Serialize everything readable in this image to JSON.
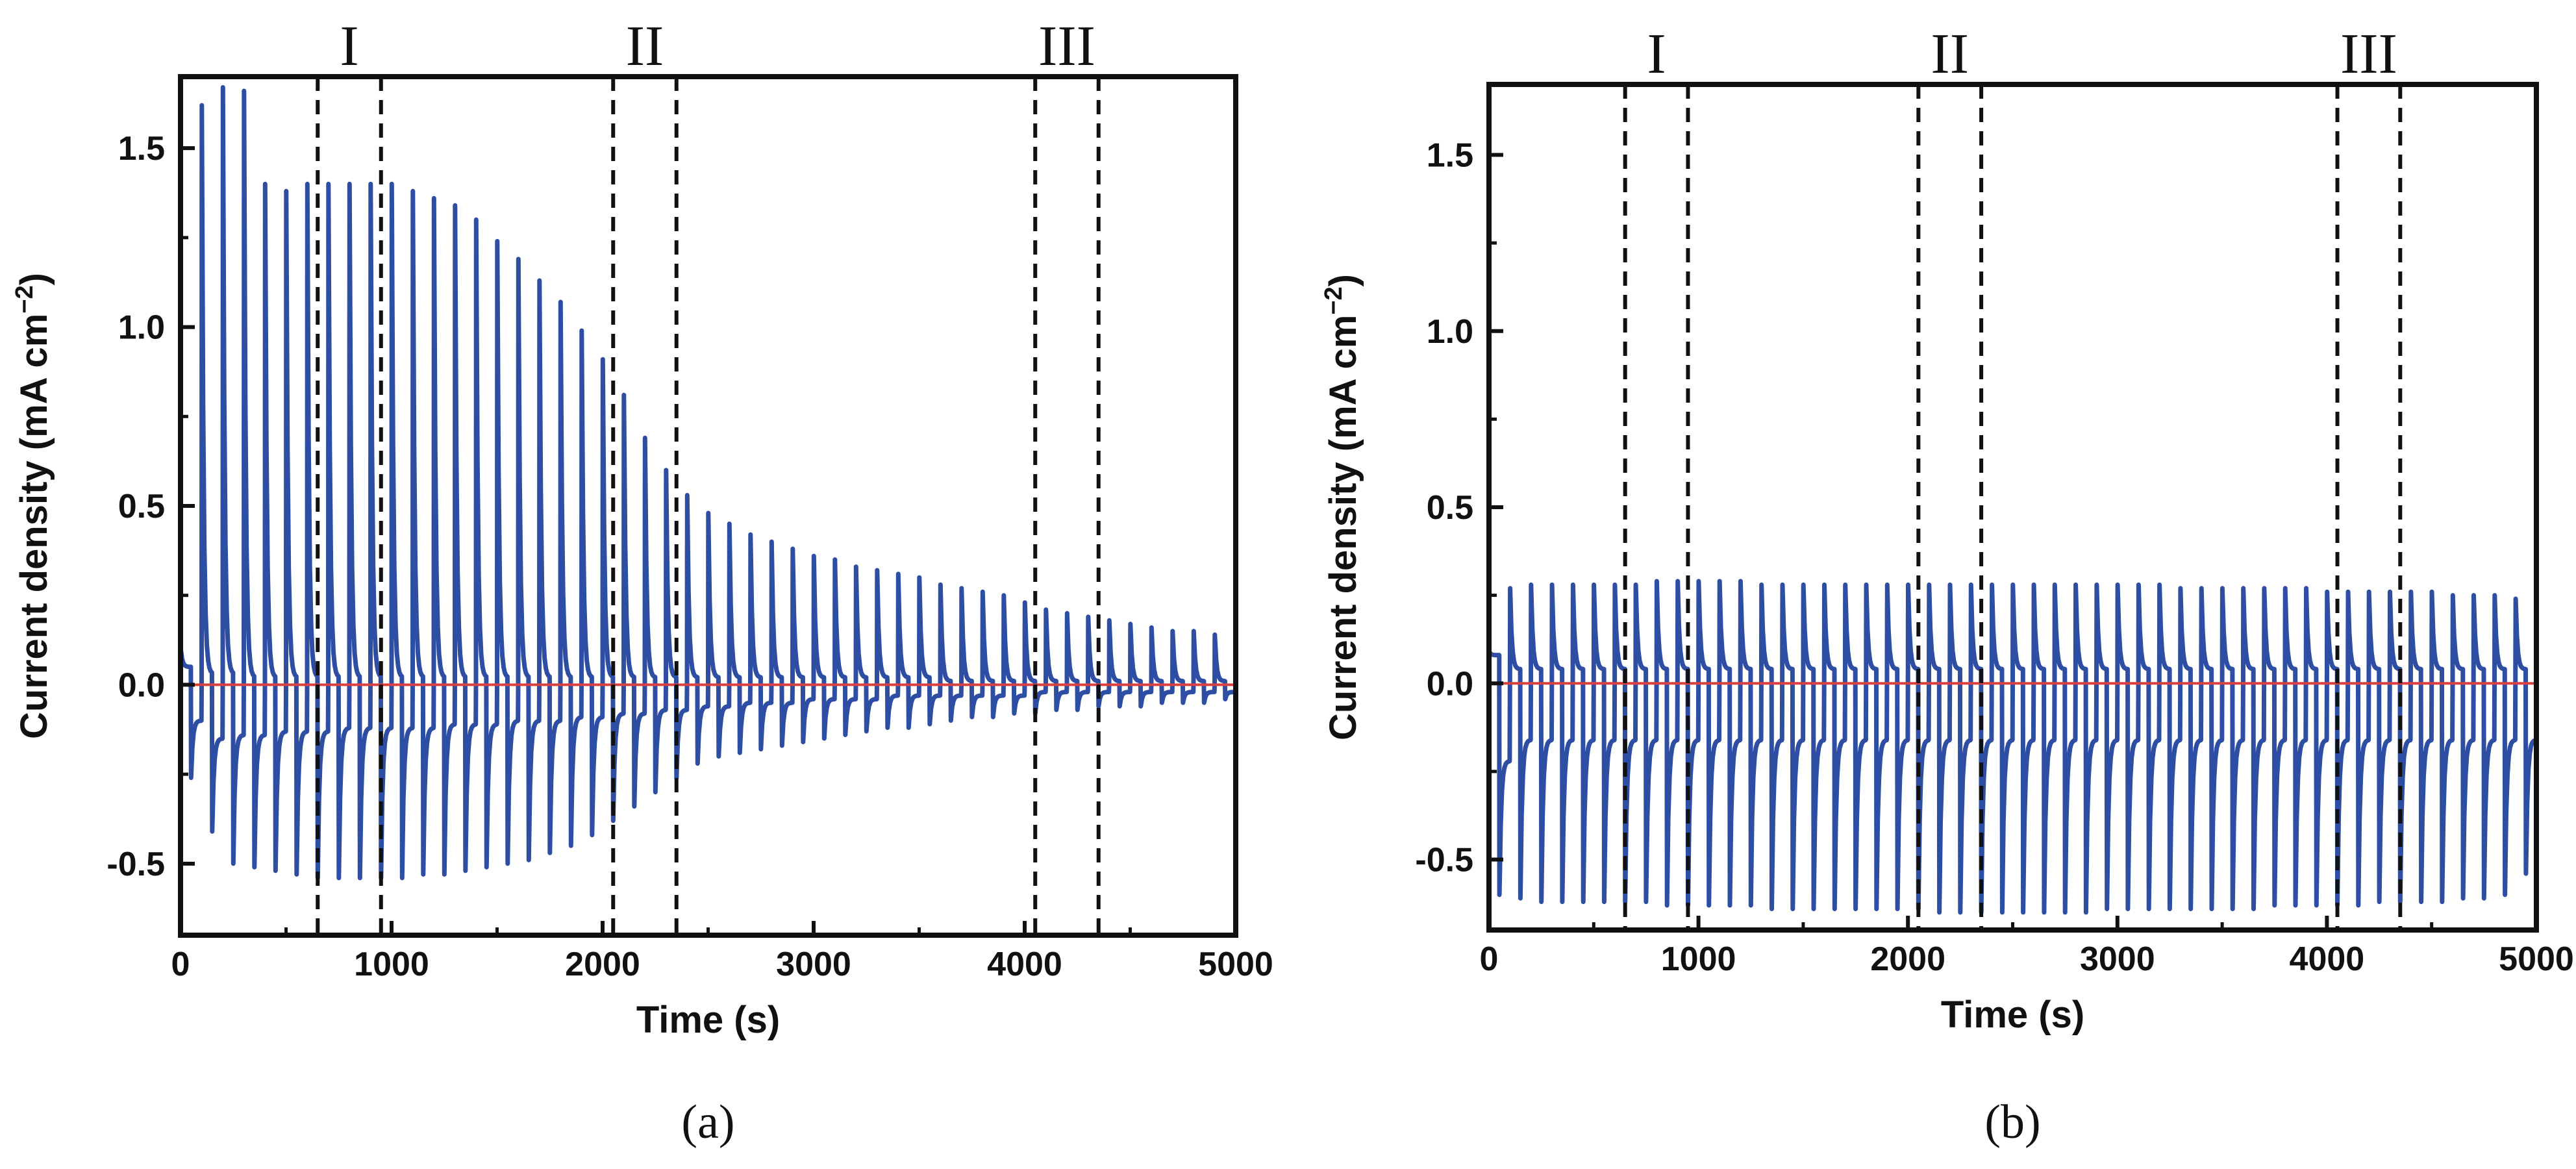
{
  "chart_data": [
    {
      "type": "line",
      "panel_label": "(a)",
      "xlabel": "Time (s)",
      "ylabel_main": "Current density (mA cm",
      "ylabel_sup": "−2",
      "ylabel_close": ")",
      "xlim": [
        0,
        5000
      ],
      "ylim": [
        -0.7,
        1.7
      ],
      "xticks": [
        0,
        1000,
        2000,
        3000,
        4000,
        5000
      ],
      "xtick_labels": [
        "0",
        "1000",
        "2000",
        "3000",
        "4000",
        "5000"
      ],
      "yticks": [
        -0.5,
        0.0,
        0.5,
        1.0,
        1.5
      ],
      "ytick_labels": [
        "-0.5",
        "0.0",
        "0.5",
        "1.0",
        "1.5"
      ],
      "series": [
        {
          "name": "current transient",
          "color": "#2e4ea3",
          "pulse_period_s": 100,
          "pulse_start_s": 0,
          "anodic_peaks": [
            0.1,
            1.62,
            1.67,
            1.66,
            1.4,
            1.38,
            1.4,
            1.4,
            1.4,
            1.4,
            1.4,
            1.38,
            1.36,
            1.34,
            1.3,
            1.24,
            1.19,
            1.13,
            1.07,
            0.99,
            0.91,
            0.81,
            0.69,
            0.6,
            0.53,
            0.48,
            0.45,
            0.42,
            0.4,
            0.38,
            0.36,
            0.35,
            0.33,
            0.32,
            0.31,
            0.3,
            0.28,
            0.27,
            0.26,
            0.25,
            0.23,
            0.21,
            0.2,
            0.19,
            0.18,
            0.17,
            0.16,
            0.15,
            0.15,
            0.14
          ],
          "cathodic_peaks": [
            -0.26,
            -0.41,
            -0.5,
            -0.51,
            -0.52,
            -0.53,
            -0.54,
            -0.54,
            -0.54,
            -0.54,
            -0.54,
            -0.53,
            -0.53,
            -0.52,
            -0.51,
            -0.5,
            -0.49,
            -0.47,
            -0.45,
            -0.42,
            -0.38,
            -0.34,
            -0.3,
            -0.26,
            -0.22,
            -0.2,
            -0.19,
            -0.18,
            -0.17,
            -0.16,
            -0.15,
            -0.14,
            -0.13,
            -0.12,
            -0.12,
            -0.11,
            -0.1,
            -0.09,
            -0.09,
            -0.08,
            -0.08,
            -0.07,
            -0.07,
            -0.06,
            -0.06,
            -0.06,
            -0.05,
            -0.05,
            -0.05,
            -0.04
          ],
          "anodic_plateaus": [
            0.05,
            0.03,
            0.03,
            0.02,
            0.02,
            0.02,
            0.02,
            0.02,
            0.02,
            0.02,
            0.02,
            0.02,
            0.02,
            0.02,
            0.02,
            0.02,
            0.02,
            0.02,
            0.02,
            0.02,
            0.02,
            0.02,
            0.02,
            0.02,
            0.02,
            0.02,
            0.02,
            0.02,
            0.02,
            0.02,
            0.02,
            0.02,
            0.02,
            0.02,
            0.02,
            0.02,
            0.01,
            0.01,
            0.01,
            0.01,
            0.01,
            0.01,
            0.01,
            0.01,
            0.01,
            0.01,
            0.01,
            0.01,
            0.01,
            0.01
          ],
          "cathodic_plateaus": [
            -0.1,
            -0.15,
            -0.14,
            -0.14,
            -0.13,
            -0.13,
            -0.13,
            -0.12,
            -0.12,
            -0.12,
            -0.12,
            -0.12,
            -0.11,
            -0.11,
            -0.11,
            -0.1,
            -0.1,
            -0.1,
            -0.09,
            -0.09,
            -0.08,
            -0.08,
            -0.07,
            -0.07,
            -0.06,
            -0.06,
            -0.05,
            -0.05,
            -0.05,
            -0.04,
            -0.04,
            -0.04,
            -0.04,
            -0.03,
            -0.03,
            -0.03,
            -0.03,
            -0.03,
            -0.03,
            -0.03,
            -0.02,
            -0.02,
            -0.02,
            -0.02,
            -0.02,
            -0.02,
            -0.02,
            -0.02,
            -0.02,
            -0.02
          ]
        },
        {
          "name": "zero baseline",
          "color": "#d9403f",
          "y": 0.0
        }
      ],
      "regions": [
        {
          "label": "I",
          "x_start": 650,
          "x_end": 950
        },
        {
          "label": "II",
          "x_start": 2050,
          "x_end": 2350
        },
        {
          "label": "III",
          "x_start": 4050,
          "x_end": 4350
        }
      ]
    },
    {
      "type": "line",
      "panel_label": "(b)",
      "xlabel": "Time (s)",
      "ylabel_main": "Current density (mA cm",
      "ylabel_sup": "−2",
      "ylabel_close": ")",
      "xlim": [
        0,
        5000
      ],
      "ylim": [
        -0.7,
        1.7
      ],
      "xticks": [
        0,
        1000,
        2000,
        3000,
        4000,
        5000
      ],
      "xtick_labels": [
        "0",
        "1000",
        "2000",
        "3000",
        "4000",
        "5000"
      ],
      "yticks": [
        -0.5,
        0.0,
        0.5,
        1.0,
        1.5
      ],
      "ytick_labels": [
        "-0.5",
        "0.0",
        "0.5",
        "1.0",
        "1.5"
      ],
      "series": [
        {
          "name": "current transient",
          "color": "#2e4ea3",
          "pulse_period_s": 100,
          "pulse_start_s": 0,
          "anodic_peaks": [
            0.09,
            0.27,
            0.28,
            0.28,
            0.28,
            0.28,
            0.28,
            0.28,
            0.29,
            0.29,
            0.29,
            0.29,
            0.29,
            0.28,
            0.28,
            0.28,
            0.28,
            0.28,
            0.28,
            0.28,
            0.28,
            0.28,
            0.28,
            0.28,
            0.28,
            0.28,
            0.28,
            0.28,
            0.28,
            0.28,
            0.28,
            0.28,
            0.28,
            0.27,
            0.27,
            0.27,
            0.27,
            0.27,
            0.27,
            0.27,
            0.26,
            0.26,
            0.26,
            0.26,
            0.26,
            0.26,
            0.25,
            0.25,
            0.25,
            0.24
          ],
          "cathodic_peaks": [
            -0.6,
            -0.61,
            -0.62,
            -0.62,
            -0.62,
            -0.62,
            -0.62,
            -0.62,
            -0.63,
            -0.63,
            -0.63,
            -0.63,
            -0.63,
            -0.64,
            -0.64,
            -0.64,
            -0.64,
            -0.64,
            -0.64,
            -0.64,
            -0.64,
            -0.65,
            -0.65,
            -0.65,
            -0.65,
            -0.65,
            -0.65,
            -0.65,
            -0.65,
            -0.64,
            -0.64,
            -0.64,
            -0.64,
            -0.64,
            -0.64,
            -0.64,
            -0.64,
            -0.63,
            -0.63,
            -0.63,
            -0.63,
            -0.63,
            -0.62,
            -0.62,
            -0.62,
            -0.62,
            -0.61,
            -0.61,
            -0.6,
            -0.54
          ],
          "anodic_plateaus": [
            0.08,
            0.04,
            0.04,
            0.04,
            0.04,
            0.04,
            0.04,
            0.04,
            0.04,
            0.04,
            0.04,
            0.04,
            0.04,
            0.04,
            0.04,
            0.04,
            0.04,
            0.04,
            0.04,
            0.04,
            0.04,
            0.04,
            0.04,
            0.04,
            0.04,
            0.04,
            0.04,
            0.04,
            0.04,
            0.04,
            0.04,
            0.04,
            0.04,
            0.04,
            0.04,
            0.04,
            0.04,
            0.04,
            0.04,
            0.04,
            0.04,
            0.04,
            0.04,
            0.04,
            0.04,
            0.04,
            0.04,
            0.04,
            0.04,
            0.04
          ],
          "cathodic_plateaus": [
            -0.22,
            -0.16,
            -0.16,
            -0.16,
            -0.16,
            -0.16,
            -0.16,
            -0.16,
            -0.16,
            -0.16,
            -0.16,
            -0.16,
            -0.16,
            -0.16,
            -0.16,
            -0.16,
            -0.16,
            -0.16,
            -0.16,
            -0.16,
            -0.16,
            -0.16,
            -0.16,
            -0.16,
            -0.16,
            -0.16,
            -0.16,
            -0.16,
            -0.16,
            -0.16,
            -0.16,
            -0.16,
            -0.16,
            -0.16,
            -0.16,
            -0.16,
            -0.16,
            -0.16,
            -0.16,
            -0.16,
            -0.16,
            -0.16,
            -0.16,
            -0.16,
            -0.16,
            -0.16,
            -0.16,
            -0.16,
            -0.16,
            -0.16
          ]
        },
        {
          "name": "zero baseline",
          "color": "#d9403f",
          "y": 0.0
        }
      ],
      "regions": [
        {
          "label": "I",
          "x_start": 650,
          "x_end": 950
        },
        {
          "label": "II",
          "x_start": 2050,
          "x_end": 2350
        },
        {
          "label": "III",
          "x_start": 4050,
          "x_end": 4350
        }
      ]
    }
  ]
}
